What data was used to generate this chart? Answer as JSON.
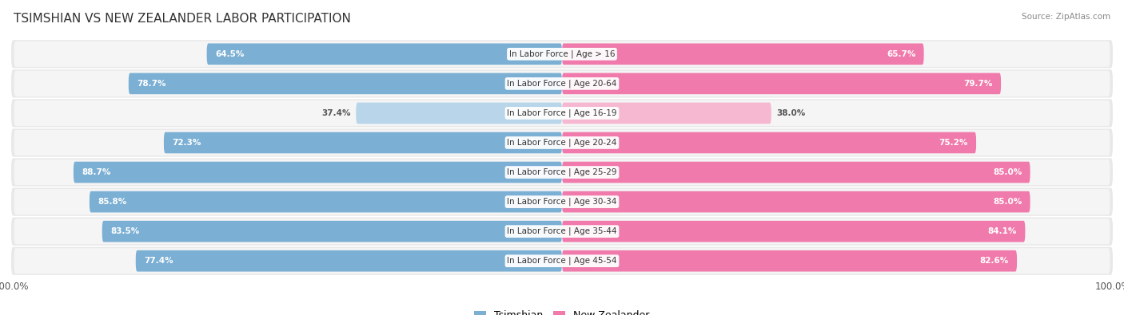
{
  "title": "TSIMSHIAN VS NEW ZEALANDER LABOR PARTICIPATION",
  "source": "Source: ZipAtlas.com",
  "categories": [
    "In Labor Force | Age > 16",
    "In Labor Force | Age 20-64",
    "In Labor Force | Age 16-19",
    "In Labor Force | Age 20-24",
    "In Labor Force | Age 25-29",
    "In Labor Force | Age 30-34",
    "In Labor Force | Age 35-44",
    "In Labor Force | Age 45-54"
  ],
  "tsimshian_values": [
    64.5,
    78.7,
    37.4,
    72.3,
    88.7,
    85.8,
    83.5,
    77.4
  ],
  "new_zealander_values": [
    65.7,
    79.7,
    38.0,
    75.2,
    85.0,
    85.0,
    84.1,
    82.6
  ],
  "tsimshian_color": "#7bafd4",
  "tsimshian_color_light": "#b8d5ea",
  "new_zealander_color": "#f07aab",
  "new_zealander_color_light": "#f5b8d0",
  "row_bg_color": "#e8e8e8",
  "row_bg_inner": "#f5f5f5",
  "max_value": 100.0,
  "legend_tsimshian": "Tsimshian",
  "legend_new_zealander": "New Zealander",
  "title_fontsize": 11,
  "label_fontsize": 7.5,
  "value_fontsize": 7.5,
  "background_color": "#ffffff"
}
